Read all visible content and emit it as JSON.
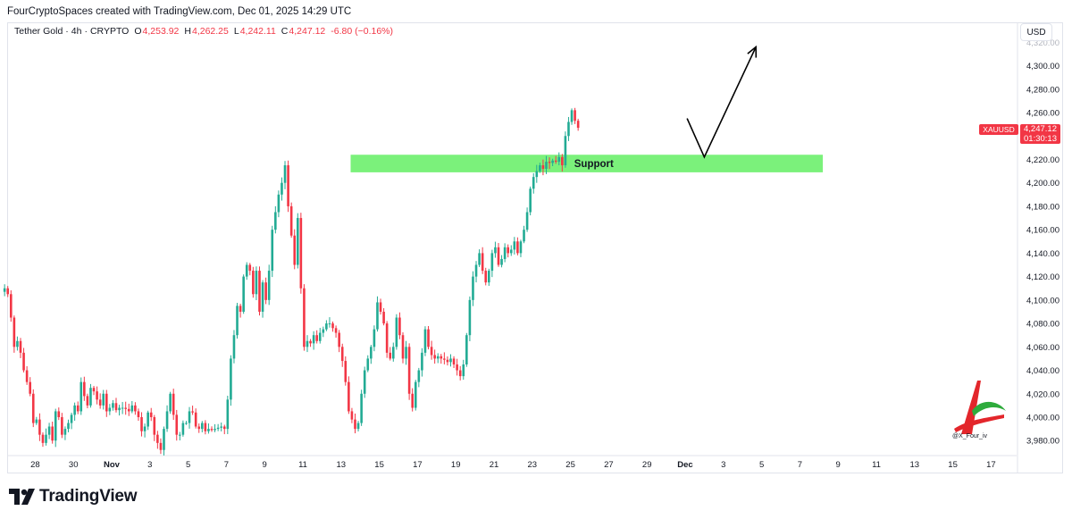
{
  "header": {
    "credit": "FourCryptoSpaces created with TradingView.com, Dec 01, 2025 14:29 UTC"
  },
  "legend": {
    "symbol": "Tether Gold",
    "interval": "4h",
    "exchange": "CRYPTO",
    "open_label": "O",
    "open": "4,253.92",
    "high_label": "H",
    "high": "4,262.25",
    "low_label": "L",
    "low": "4,242.11",
    "close_label": "C",
    "close": "4,247.12",
    "change": "-6.80 (−0.16%)"
  },
  "price_scale": {
    "currency": "USD"
  },
  "last_price": {
    "symbol": "XAUUSD",
    "price": "4,247.12",
    "countdown": "01:30:13"
  },
  "annotations": {
    "zone_label": "Support"
  },
  "watermark": {
    "handle": "@X_Four_iv"
  },
  "footer": {
    "brand": "TradingView"
  },
  "colors": {
    "up": "#22ab94",
    "down": "#f23645",
    "zone": "#7bf17b",
    "text": "#131722",
    "grid": "#e0e3eb"
  },
  "chart_data": {
    "type": "candlestick",
    "ylim": [
      3970,
      4340
    ],
    "y_ticks": [
      3980,
      4000,
      4020,
      4040,
      4060,
      4080,
      4100,
      4120,
      4140,
      4160,
      4180,
      4200,
      4220,
      4240,
      4260,
      4280,
      4300
    ],
    "y_tick_labels": [
      "3,980.00",
      "4,000.00",
      "4,020.00",
      "4,040.00",
      "4,060.00",
      "4,080.00",
      "4,100.00",
      "4,120.00",
      "4,140.00",
      "4,160.00",
      "4,180.00",
      "4,200.00",
      "4,220.00",
      "4,240.00",
      "4,260.00",
      "4,280.00",
      "4,300.00"
    ],
    "x_tick_labels": [
      "28",
      "30",
      "Nov",
      "3",
      "5",
      "7",
      "9",
      "11",
      "13",
      "15",
      "17",
      "19",
      "21",
      "23",
      "25",
      "27",
      "29",
      "Dec",
      "3",
      "5",
      "7",
      "9",
      "11",
      "13",
      "15",
      "17"
    ],
    "x_tick_days": [
      -4,
      -2,
      0,
      2,
      4,
      6,
      8,
      10,
      12,
      14,
      16,
      18,
      20,
      22,
      24,
      26,
      28,
      30,
      32,
      34,
      36,
      38,
      40,
      42,
      44,
      46
    ],
    "candles_per_day": 6,
    "first_candle_day": -5.6,
    "closes": [
      4110,
      4105,
      4085,
      4060,
      4065,
      4055,
      4040,
      4030,
      4020,
      3995,
      3998,
      3985,
      3978,
      3985,
      3992,
      3980,
      4005,
      4000,
      3985,
      3990,
      3995,
      4002,
      4010,
      4005,
      4030,
      4018,
      4010,
      4025,
      4022,
      4015,
      4010,
      4020,
      4005,
      4008,
      4012,
      4006,
      4008,
      4008,
      4007,
      4005,
      4010,
      4005,
      4000,
      3988,
      3992,
      4004,
      4000,
      3985,
      3978,
      3972,
      3990,
      4005,
      4020,
      4002,
      3985,
      3985,
      3995,
      3995,
      4005,
      4004,
      3992,
      3990,
      3995,
      3988,
      3990,
      3989,
      3990,
      3991,
      3992,
      3990,
      4015,
      4050,
      4070,
      4095,
      4090,
      4120,
      4130,
      4125,
      4105,
      4125,
      4090,
      4115,
      4100,
      4125,
      4160,
      4175,
      4190,
      4200,
      4215,
      4180,
      4155,
      4130,
      4170,
      4110,
      4060,
      4065,
      4063,
      4070,
      4065,
      4072,
      4075,
      4080,
      4080,
      4076,
      4072,
      4060,
      4048,
      4030,
      4005,
      3998,
      3990,
      3995,
      4020,
      4040,
      4050,
      4060,
      4075,
      4098,
      4090,
      4080,
      4055,
      4050,
      4060,
      4085,
      4070,
      4050,
      4060,
      4020,
      4008,
      4030,
      4040,
      4055,
      4075,
      4060,
      4053,
      4050,
      4052,
      4050,
      4049,
      4047,
      4050,
      4045,
      4040,
      4035,
      4045,
      4070,
      4100,
      4120,
      4130,
      4140,
      4125,
      4115,
      4125,
      4140,
      4145,
      4130,
      4135,
      4145,
      4140,
      4143,
      4150,
      4140,
      4150,
      4160,
      4175,
      4195,
      4205,
      4210,
      4215,
      4212,
      4218,
      4217,
      4219,
      4218,
      4222,
      4215,
      4240,
      4252,
      4262,
      4253,
      4247
    ]
  },
  "projection": {
    "from_day": 30.1,
    "from_price": 4255,
    "via_day": 31.0,
    "via_price": 4222,
    "to_day": 33.7,
    "to_price": 4316
  },
  "support_zone": {
    "start_day": 12.5,
    "end_day": 37.2,
    "low": 4209,
    "high": 4224
  }
}
